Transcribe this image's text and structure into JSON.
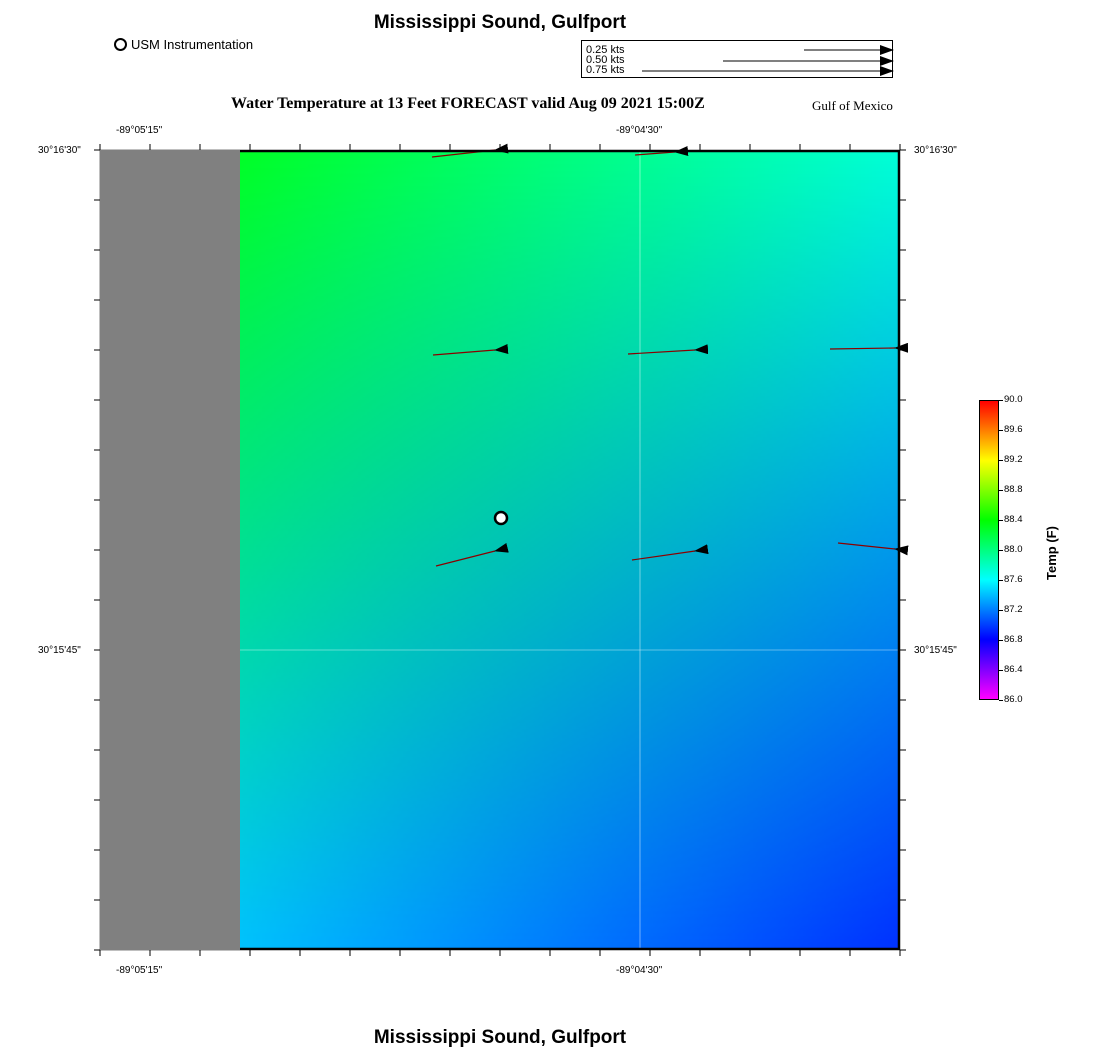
{
  "header": {
    "title": "Mississippi Sound, Gulfport",
    "subtitle": "Water Temperature at 13 Feet FORECAST valid Aug 09 2021 15:00Z",
    "region": "Gulf of Mexico",
    "footer_title": "Mississippi Sound, Gulfport"
  },
  "legend": {
    "station_label": "USM Instrumentation",
    "vector_scale": [
      "0.25 kts",
      "0.50 kts",
      "0.75 kts"
    ]
  },
  "axes": {
    "x_ticks": [
      "-89°05'15\"",
      "-89°04'30\""
    ],
    "y_ticks": [
      "30°16'30\"",
      "30°15'45\""
    ]
  },
  "colorbar": {
    "title": "Temp (F)",
    "min": 86.0,
    "max": 90.0,
    "labels": [
      "90.0",
      "89.6",
      "89.2",
      "88.8",
      "88.4",
      "88.0",
      "87.6",
      "87.2",
      "86.8",
      "86.4",
      "86.0"
    ],
    "colors": [
      "#ff00ff",
      "#0000ff",
      "#00ffff",
      "#00ff00",
      "#ffff00",
      "#ff0000"
    ]
  },
  "field": {
    "land_color": "#808080",
    "water_colors": {
      "top_left": "#00ff00",
      "top_right": "#00ffd8",
      "bottom_left": "#00e0ff",
      "bottom_right": "#0030ff"
    }
  }
}
